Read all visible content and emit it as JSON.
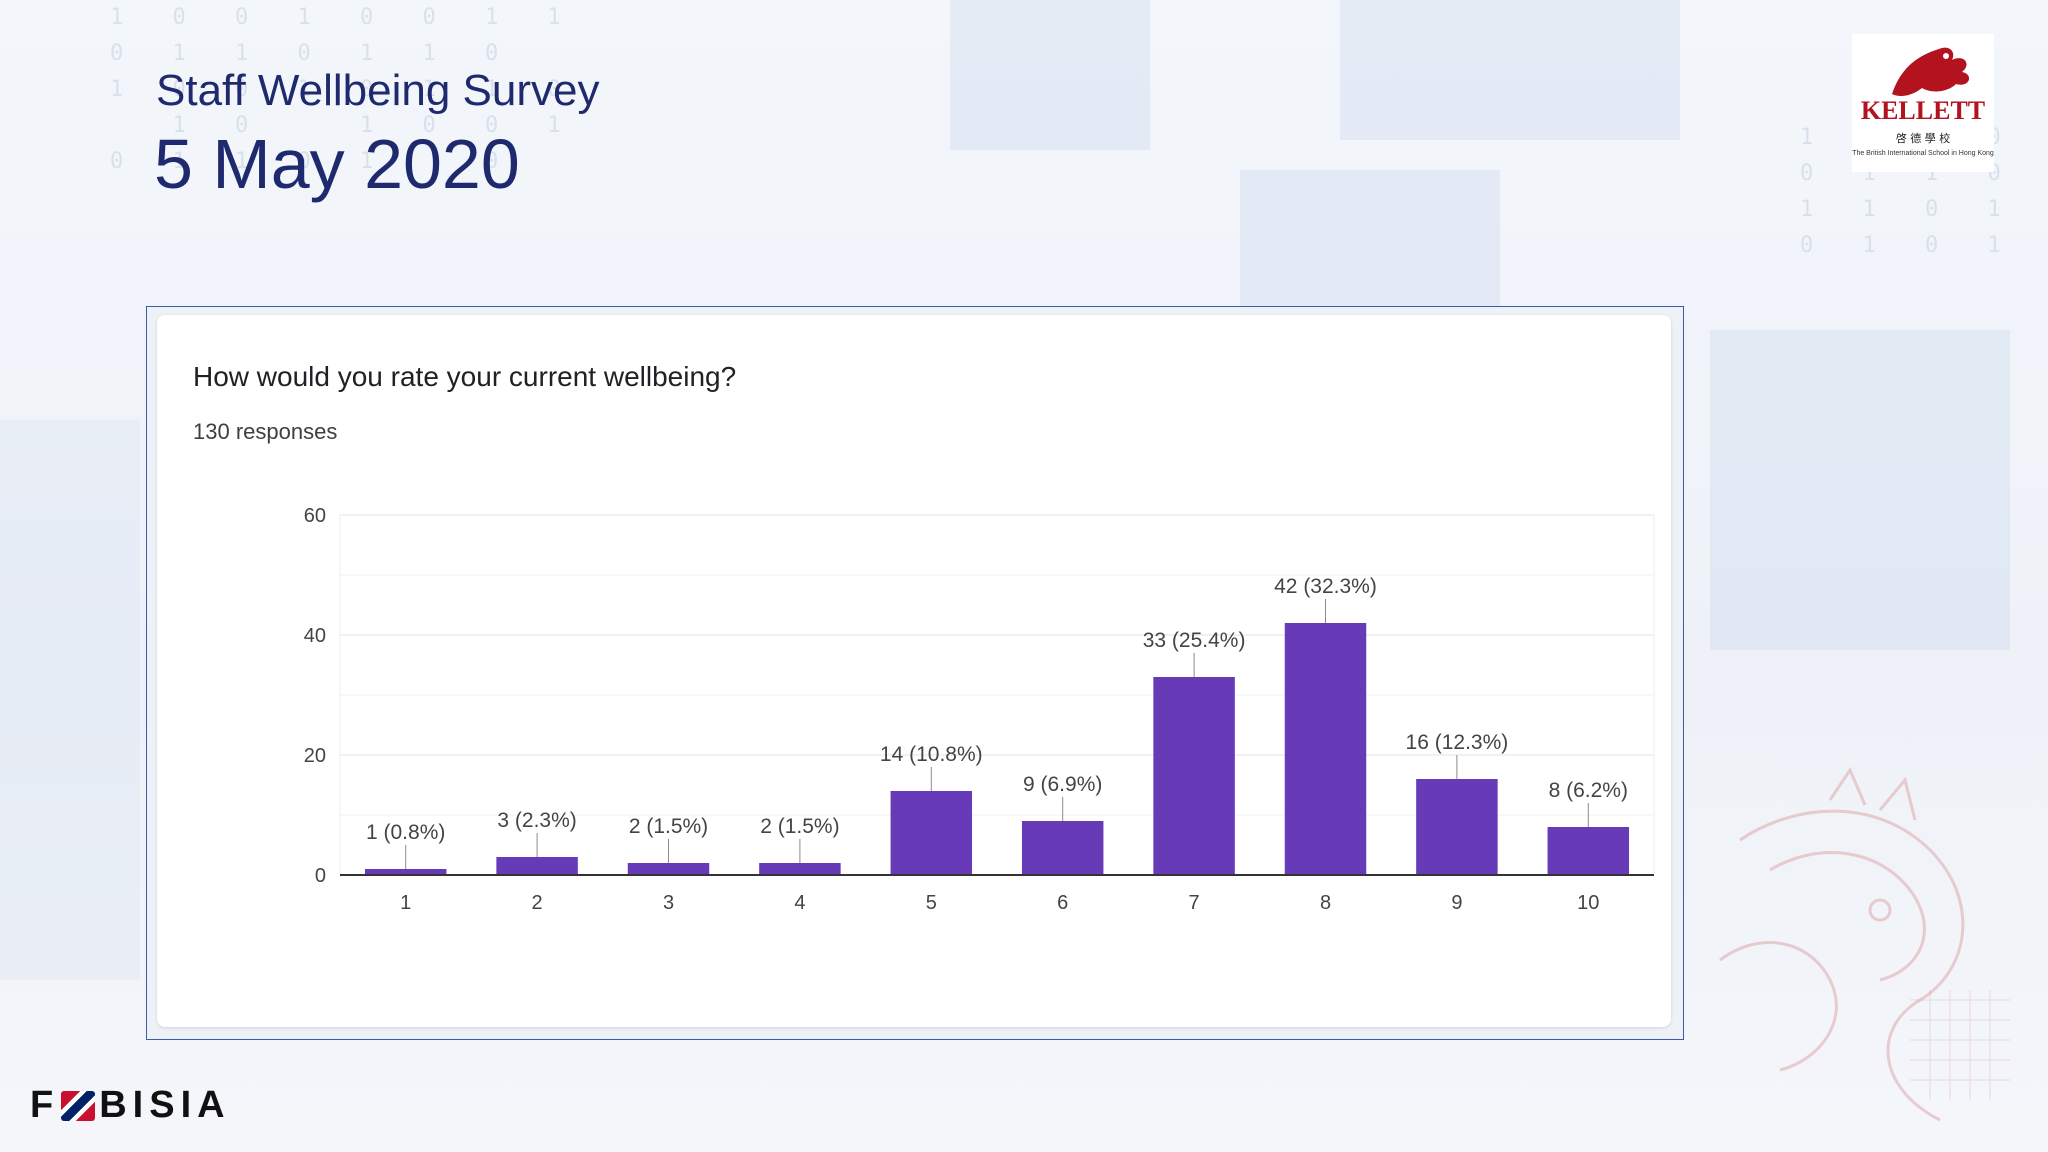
{
  "slide": {
    "title": "Staff Wellbeing Survey",
    "date": "5 May 2020"
  },
  "logos": {
    "school_wordmark": "KELLETT",
    "school_chinese": "啓 德 學 校",
    "school_subtitle": "The British International School in Hong Kong",
    "footer_brand_left": "F",
    "footer_brand_right": "BISIA"
  },
  "colors": {
    "title": "#1f2a6e",
    "bar": "#673ab7",
    "axis": "#333333",
    "grid": "#e0e0e0",
    "frame_border": "#3b5bb0"
  },
  "chart_data": {
    "type": "bar",
    "title": "How would you rate your current wellbeing?",
    "subtitle": "130 responses",
    "categories": [
      "1",
      "2",
      "3",
      "4",
      "5",
      "6",
      "7",
      "8",
      "9",
      "10"
    ],
    "values": [
      1,
      3,
      2,
      2,
      14,
      9,
      33,
      42,
      16,
      8
    ],
    "data_labels": [
      "1 (0.8%)",
      "3 (2.3%)",
      "2 (1.5%)",
      "2 (1.5%)",
      "14 (10.8%)",
      "9 (6.9%)",
      "33 (25.4%)",
      "42 (32.3%)",
      "16 (12.3%)",
      "8 (6.2%)"
    ],
    "yticks": [
      0,
      20,
      40,
      60
    ],
    "ylim": [
      0,
      60
    ],
    "xlabel": "",
    "ylabel": "",
    "grid": true,
    "legend": false
  }
}
